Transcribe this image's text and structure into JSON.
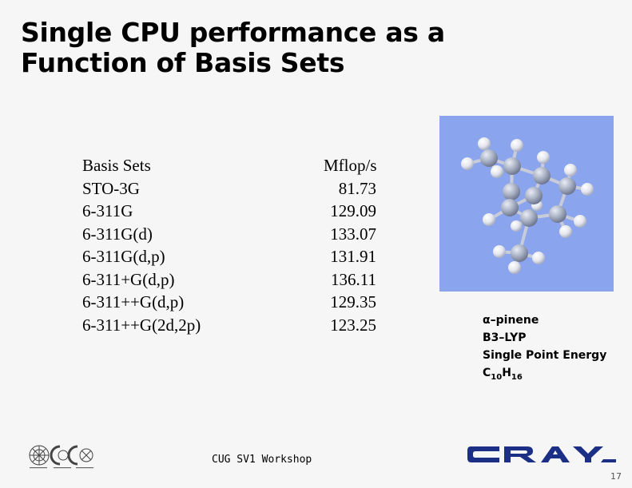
{
  "slide": {
    "title_line1": "Single CPU performance as a",
    "title_line2": "Function of Basis Sets",
    "page_number": "17",
    "footer": "CUG SV1 Workshop"
  },
  "table": {
    "headers": [
      "Basis Sets",
      "Mflop/s"
    ],
    "rows": [
      [
        "STO-3G",
        "81.73"
      ],
      [
        "6-311G",
        "129.09"
      ],
      [
        "6-311G(d)",
        "133.07"
      ],
      [
        "6-311G(d,p)",
        "131.91"
      ],
      [
        "6-311+G(d,p)",
        "136.11"
      ],
      [
        "6-311++G(d,p)",
        "129.35"
      ],
      [
        "6-311++G(2d,2p)",
        "123.25"
      ]
    ]
  },
  "caption": {
    "molecule": "α–pinene",
    "method": "B3–LYP",
    "calc": "Single Point Energy",
    "formula_c": "C",
    "formula_c_sub": "10",
    "formula_h": "H",
    "formula_h_sub": "16"
  },
  "colors": {
    "background": "#f6f6f6",
    "molecule_bg": "#8aa4ee",
    "cray_logo": "#1b2f86"
  }
}
